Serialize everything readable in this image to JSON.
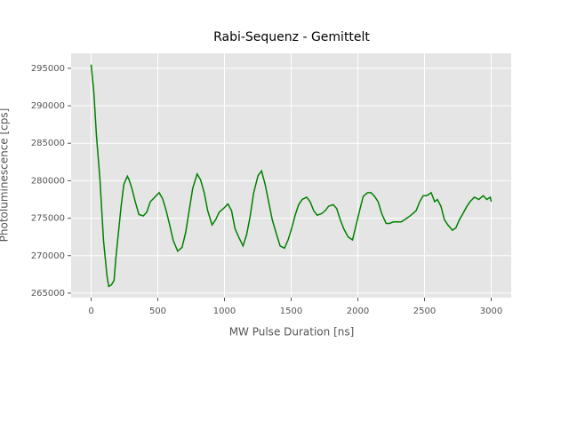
{
  "chart_data": {
    "type": "line",
    "title": "Rabi-Sequenz - Gemittelt",
    "xlabel": "MW Pulse Duration [ns]",
    "ylabel": "Photoluminescence [cps]",
    "x": [
      0,
      20,
      40,
      66,
      93,
      119,
      132,
      152,
      172,
      185,
      205,
      225,
      245,
      272,
      285,
      305,
      331,
      358,
      391,
      417,
      444,
      477,
      510,
      536,
      563,
      589,
      616,
      649,
      682,
      709,
      735,
      762,
      795,
      821,
      848,
      874,
      907,
      934,
      960,
      993,
      1026,
      1053,
      1079,
      1106,
      1139,
      1166,
      1192,
      1219,
      1252,
      1278,
      1305,
      1331,
      1358,
      1391,
      1417,
      1450,
      1477,
      1503,
      1530,
      1556,
      1583,
      1616,
      1642,
      1669,
      1695,
      1728,
      1755,
      1781,
      1815,
      1841,
      1868,
      1894,
      1927,
      1960,
      1987,
      2013,
      2040,
      2073,
      2099,
      2126,
      2152,
      2179,
      2212,
      2238,
      2265,
      2298,
      2325,
      2351,
      2384,
      2411,
      2437,
      2464,
      2490,
      2517,
      2550,
      2576,
      2596,
      2623,
      2649,
      2675,
      2709,
      2735,
      2762,
      2788,
      2815,
      2841,
      2874,
      2907,
      2940,
      2967,
      2993,
      3000
    ],
    "series": [
      {
        "name": "Photoluminescence",
        "color": "#008000",
        "values": [
          295500,
          291900,
          286000,
          280200,
          272000,
          267300,
          265900,
          266100,
          266700,
          269600,
          273100,
          276600,
          279500,
          280600,
          280100,
          279000,
          277200,
          275500,
          275300,
          275800,
          277200,
          277800,
          278400,
          277600,
          276000,
          274100,
          272000,
          270600,
          271100,
          273100,
          276000,
          279000,
          280900,
          280100,
          278400,
          276000,
          274100,
          274800,
          275800,
          276300,
          276900,
          276000,
          273600,
          272500,
          271300,
          272800,
          275200,
          278400,
          280700,
          281300,
          279500,
          277200,
          274800,
          272800,
          271300,
          271000,
          272100,
          273600,
          275400,
          276800,
          277500,
          277800,
          277200,
          276000,
          275400,
          275600,
          276000,
          276600,
          276800,
          276300,
          274800,
          273600,
          272500,
          272100,
          274100,
          276000,
          277900,
          278400,
          278400,
          277900,
          277200,
          275600,
          274300,
          274300,
          274500,
          274500,
          274500,
          274800,
          275200,
          275600,
          276000,
          277200,
          278000,
          278000,
          278400,
          277200,
          277500,
          276600,
          274800,
          274100,
          273400,
          273700,
          274800,
          275600,
          276500,
          277200,
          277800,
          277500,
          278000,
          277500,
          277800,
          277200
        ]
      }
    ],
    "xlim": [
      -150,
      3150
    ],
    "ylim": [
      264400,
      297000
    ],
    "xticks": [
      0,
      500,
      1000,
      1500,
      2000,
      2500,
      3000
    ],
    "yticks": [
      265000,
      270000,
      275000,
      280000,
      285000,
      290000,
      295000
    ],
    "grid": true
  }
}
